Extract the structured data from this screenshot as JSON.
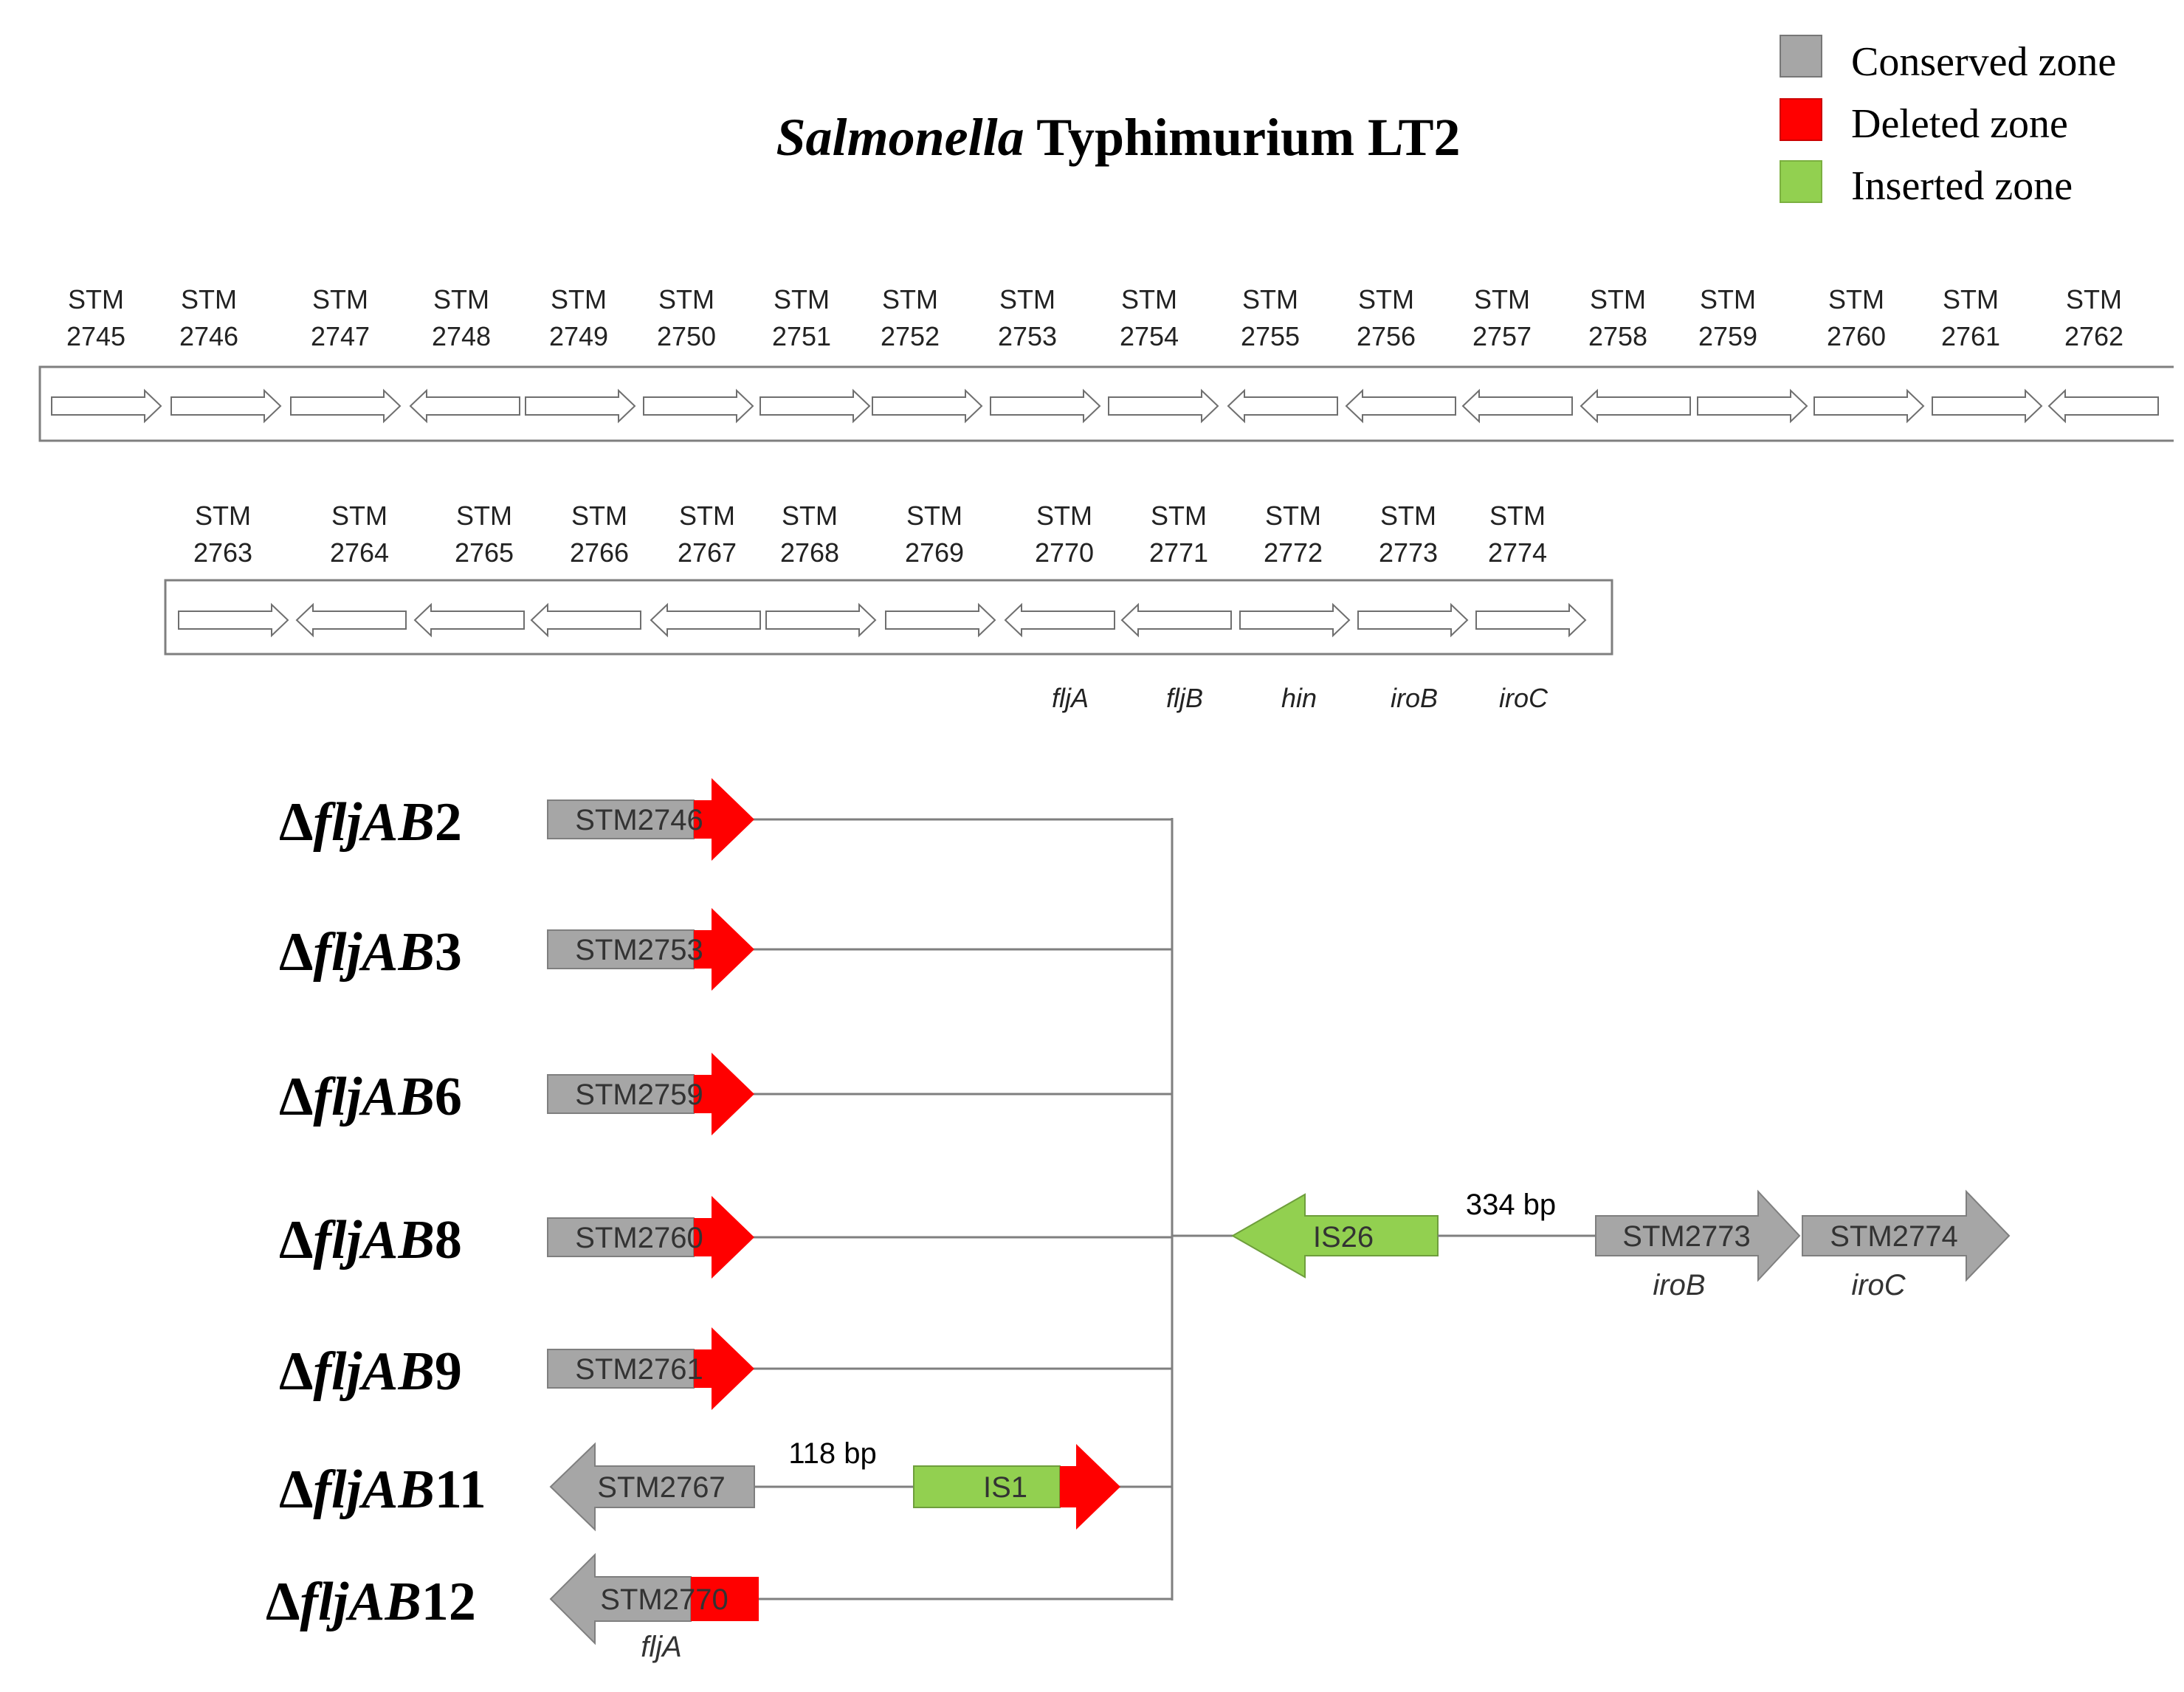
{
  "title": {
    "italic": "Salmonella",
    "plain": " Typhimurium LT2"
  },
  "legend": [
    {
      "label": "Conserved zone",
      "color": "#a6a6a6"
    },
    {
      "label": "Deleted zone",
      "color": "#ff0000"
    },
    {
      "label": "Inserted zone",
      "color": "#92d050"
    }
  ],
  "colors": {
    "conserved": "#a6a6a6",
    "deleted": "#ff0000",
    "inserted": "#92d050",
    "line": "#7f7f7f"
  },
  "operon_row1": [
    {
      "top": "STM",
      "num": "2745",
      "dir": "right"
    },
    {
      "top": "STM",
      "num": "2746",
      "dir": "right"
    },
    {
      "top": "STM",
      "num": "2747",
      "dir": "right"
    },
    {
      "top": "STM",
      "num": "2748",
      "dir": "left"
    },
    {
      "top": "STM",
      "num": "2749",
      "dir": "right"
    },
    {
      "top": "STM",
      "num": "2750",
      "dir": "right"
    },
    {
      "top": "STM",
      "num": "2751",
      "dir": "right"
    },
    {
      "top": "STM",
      "num": "2752",
      "dir": "right"
    },
    {
      "top": "STM",
      "num": "2753",
      "dir": "right"
    },
    {
      "top": "STM",
      "num": "2754",
      "dir": "right"
    },
    {
      "top": "STM",
      "num": "2755",
      "dir": "left"
    },
    {
      "top": "STM",
      "num": "2756",
      "dir": "left"
    },
    {
      "top": "STM",
      "num": "2757",
      "dir": "left"
    },
    {
      "top": "STM",
      "num": "2758",
      "dir": "left"
    },
    {
      "top": "STM",
      "num": "2759",
      "dir": "right"
    },
    {
      "top": "STM",
      "num": "2760",
      "dir": "right"
    },
    {
      "top": "STM",
      "num": "2761",
      "dir": "right"
    },
    {
      "top": "STM",
      "num": "2762",
      "dir": "left"
    }
  ],
  "operon_row2": [
    {
      "top": "STM",
      "num": "2763",
      "dir": "right",
      "gene": ""
    },
    {
      "top": "STM",
      "num": "2764",
      "dir": "left",
      "gene": ""
    },
    {
      "top": "STM",
      "num": "2765",
      "dir": "left",
      "gene": ""
    },
    {
      "top": "STM",
      "num": "2766",
      "dir": "left",
      "gene": ""
    },
    {
      "top": "STM",
      "num": "2767",
      "dir": "left",
      "gene": ""
    },
    {
      "top": "STM",
      "num": "2768",
      "dir": "right",
      "gene": ""
    },
    {
      "top": "STM",
      "num": "2769",
      "dir": "right",
      "gene": ""
    },
    {
      "top": "STM",
      "num": "2770",
      "dir": "left",
      "gene": "fljA"
    },
    {
      "top": "STM",
      "num": "2771",
      "dir": "left",
      "gene": "fljB"
    },
    {
      "top": "STM",
      "num": "2772",
      "dir": "right",
      "gene": "hin"
    },
    {
      "top": "STM",
      "num": "2773",
      "dir": "right",
      "gene": "iroB"
    },
    {
      "top": "STM",
      "num": "2774",
      "dir": "right",
      "gene": "iroC"
    }
  ],
  "mutants": [
    {
      "prefix": "Δ",
      "italic": "fljAB",
      "num": "2",
      "gene_label": "STM2746"
    },
    {
      "prefix": "Δ",
      "italic": "fljAB",
      "num": "3",
      "gene_label": "STM2753"
    },
    {
      "prefix": "Δ",
      "italic": "fljAB",
      "num": "6",
      "gene_label": "STM2759"
    },
    {
      "prefix": "Δ",
      "italic": "fljAB",
      "num": "8",
      "gene_label": "STM2760"
    },
    {
      "prefix": "Δ",
      "italic": "fljAB",
      "num": "9",
      "gene_label": "STM2761"
    },
    {
      "prefix": "Δ",
      "italic": "fljAB",
      "num": "11",
      "gene_label": "STM2767"
    },
    {
      "prefix": "Δ",
      "italic": "fljAB",
      "num": "12",
      "gene_label": "STM2770",
      "gene_name": "fljA"
    }
  ],
  "insertions": {
    "is1": {
      "label": "IS1",
      "gap": "118 bp"
    },
    "is26": {
      "label": "IS26",
      "gap": "334 bp"
    }
  },
  "downstream": [
    {
      "label": "STM2773",
      "gene": "iroB"
    },
    {
      "label": "STM2774",
      "gene": "iroC"
    }
  ]
}
